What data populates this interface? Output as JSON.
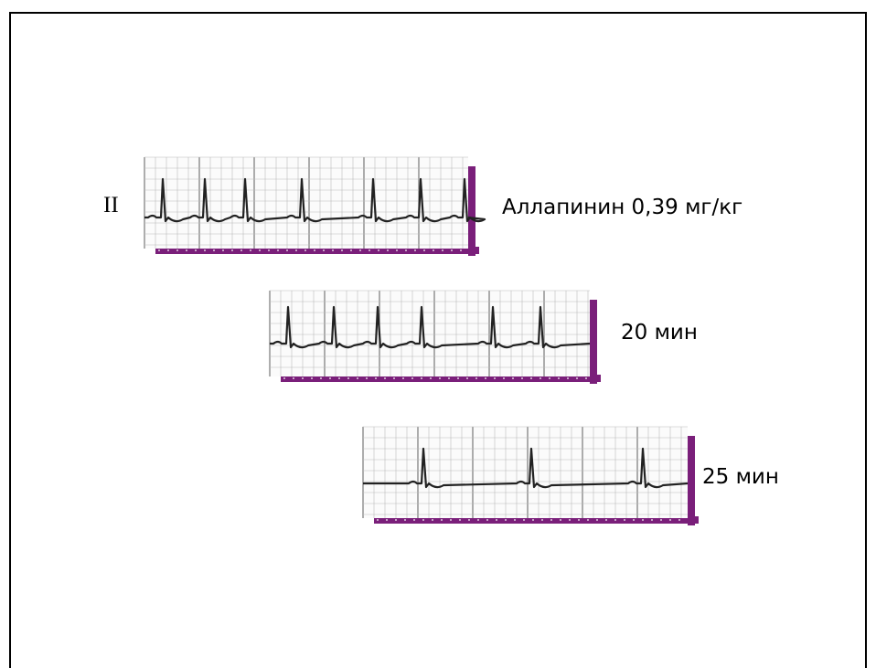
{
  "lead_label": "II",
  "strips": [
    {
      "caption": "Аллапинин 0,39 мг/кг"
    },
    {
      "caption": "20 мин"
    },
    {
      "caption": "25 мин"
    }
  ]
}
